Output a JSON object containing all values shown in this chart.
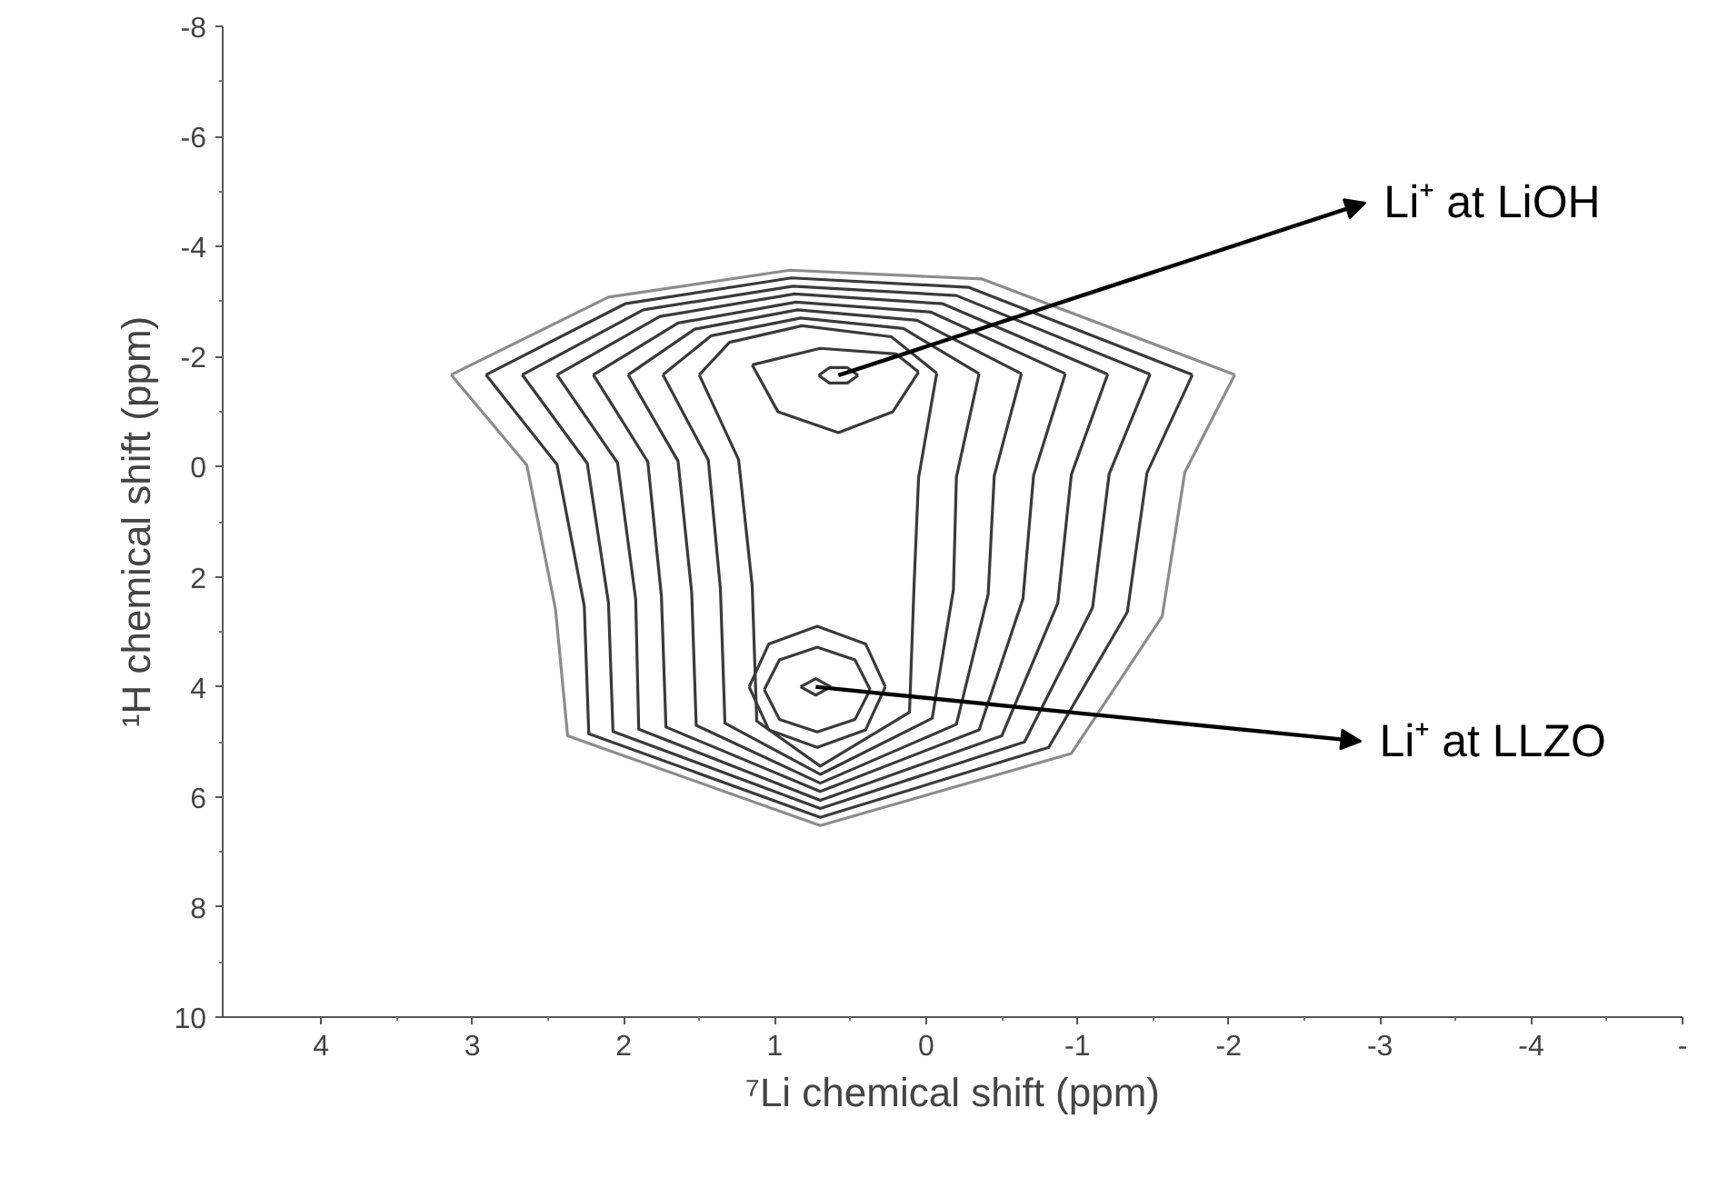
{
  "chart_data": {
    "type": "line",
    "xlabel": "⁷Li chemical shift (ppm)",
    "ylabel": "¹H chemical shift (ppm)",
    "xlim": [
      4.65,
      -5
    ],
    "ylim": [
      10,
      -8
    ],
    "xticks": [
      4,
      3,
      2,
      1,
      0,
      -1,
      -2,
      -3,
      -4,
      {
        "value": -5,
        "label": "-"
      }
    ],
    "yticks": [
      -8,
      -6,
      -4,
      -2,
      0,
      2,
      4,
      6,
      8,
      10
    ],
    "grid": false,
    "marker": "none",
    "line_style": "solid",
    "series": [
      {
        "color": "#8c8c8c",
        "x": [
          -2.04,
          -0.37,
          0.9,
          2.1,
          3.14
        ],
        "values": [
          -1.67,
          -3.41,
          -3.57,
          -3.08,
          -1.67
        ]
      },
      {
        "color": "#8c8c8c",
        "x": [
          -2.04,
          -1.71,
          -1.56,
          -0.96,
          0.7,
          2.37,
          2.45,
          2.64,
          3.14
        ],
        "values": [
          -1.67,
          0.1,
          2.72,
          5.21,
          6.52,
          4.89,
          2.59,
          -0.03,
          -1.67
        ]
      },
      {
        "color": "#3a3a3a",
        "x": [
          -1.76,
          -0.28,
          0.89,
          1.99,
          2.91
        ],
        "values": [
          -1.67,
          -3.26,
          -3.43,
          -2.96,
          -1.67
        ]
      },
      {
        "color": "#3a3a3a",
        "x": [
          -1.76,
          -1.46,
          -1.33,
          -0.81,
          0.7,
          2.23,
          2.26,
          2.44,
          2.91
        ],
        "values": [
          -1.67,
          0.11,
          2.64,
          5.1,
          6.37,
          4.85,
          2.53,
          -0.04,
          -1.67
        ]
      },
      {
        "color": "#3a3a3a",
        "x": [
          -1.48,
          -0.2,
          0.88,
          1.87,
          2.67
        ],
        "values": [
          -1.68,
          -3.11,
          -3.28,
          -2.85,
          -1.67
        ]
      },
      {
        "color": "#3a3a3a",
        "x": [
          -1.48,
          -1.21,
          -1.1,
          -0.65,
          0.7,
          2.07,
          2.1,
          2.24,
          2.67
        ],
        "values": [
          -1.68,
          0.13,
          2.56,
          5.0,
          6.21,
          4.81,
          2.47,
          -0.06,
          -1.67
        ]
      },
      {
        "color": "#3a3a3a",
        "x": [
          -1.2,
          -0.11,
          0.87,
          1.76,
          2.44
        ],
        "values": [
          -1.68,
          -2.96,
          -3.14,
          -2.73,
          -1.67
        ]
      },
      {
        "color": "#3a3a3a",
        "x": [
          -1.2,
          -0.96,
          -0.87,
          -0.5,
          0.7,
          1.9,
          1.92,
          2.04,
          2.44
        ],
        "values": [
          -1.68,
          0.14,
          2.48,
          4.89,
          6.06,
          4.77,
          2.41,
          -0.07,
          -1.67
        ]
      },
      {
        "color": "#3a3a3a",
        "x": [
          -0.92,
          -0.03,
          0.86,
          1.64,
          2.2
        ],
        "values": [
          -1.69,
          -2.81,
          -2.99,
          -2.61,
          -1.67
        ]
      },
      {
        "color": "#3a3a3a",
        "x": [
          -0.92,
          -0.71,
          -0.64,
          -0.35,
          0.7,
          1.72,
          1.75,
          1.84,
          2.2
        ],
        "values": [
          -1.69,
          0.16,
          2.4,
          4.78,
          5.9,
          4.73,
          2.35,
          -0.09,
          -1.67
        ]
      },
      {
        "color": "#3a3a3a",
        "x": [
          -0.63,
          0.06,
          0.85,
          1.53,
          1.97
        ],
        "values": [
          -1.69,
          -2.66,
          -2.85,
          -2.5,
          -1.67
        ]
      },
      {
        "color": "#3a3a3a",
        "x": [
          -0.63,
          -0.45,
          -0.41,
          -0.2,
          0.7,
          1.52,
          1.55,
          1.64,
          1.97
        ],
        "values": [
          -1.69,
          0.17,
          2.32,
          4.68,
          5.75,
          4.7,
          2.28,
          -0.1,
          -1.67
        ]
      },
      {
        "color": "#3a3a3a",
        "x": [
          -0.35,
          0.15,
          0.83,
          1.42,
          1.74
        ],
        "values": [
          -1.69,
          -2.51,
          -2.7,
          -2.38,
          -1.67
        ]
      },
      {
        "color": "#3a3a3a",
        "x": [
          -0.35,
          -0.2,
          -0.18,
          -0.04,
          0.7,
          1.33,
          1.36,
          1.44,
          1.74
        ],
        "values": [
          -1.69,
          0.19,
          2.24,
          4.57,
          5.59,
          4.66,
          2.22,
          -0.12,
          -1.67
        ]
      },
      {
        "color": "#3a3a3a",
        "x": [
          -0.07,
          0.23,
          0.82,
          1.3,
          1.5
        ],
        "values": [
          -1.7,
          -2.36,
          -2.56,
          -2.26,
          -1.67
        ]
      },
      {
        "color": "#3a3a3a",
        "x": [
          -0.07,
          0.05,
          0.08,
          0.11,
          0.7,
          1.12,
          1.15,
          1.24,
          1.5
        ],
        "values": [
          -1.7,
          0.2,
          2.16,
          4.46,
          5.44,
          4.62,
          2.16,
          -0.13,
          -1.67
        ]
      },
      {
        "color": "#3a3a3a",
        "x": [
          0.05,
          0.2,
          0.7,
          1.15
        ],
        "values": [
          -1.72,
          -2.05,
          -2.15,
          -1.85
        ]
      },
      {
        "color": "#3a3a3a",
        "x": [
          0.05,
          0.22,
          0.58,
          0.98,
          1.15
        ],
        "values": [
          -1.72,
          -1.0,
          -0.62,
          -1.0,
          -1.85
        ]
      },
      {
        "color": "#3a3a3a",
        "x": [
          0.45,
          0.52,
          0.64,
          0.71
        ],
        "values": [
          -1.66,
          -1.8,
          -1.8,
          -1.66
        ]
      },
      {
        "color": "#3a3a3a",
        "x": [
          0.45,
          0.52,
          0.64,
          0.71
        ],
        "values": [
          -1.66,
          -1.52,
          -1.52,
          -1.66
        ]
      },
      {
        "color": "#3a3a3a",
        "x": [
          0.27,
          0.4,
          0.72,
          1.04,
          1.17
        ],
        "values": [
          4.0,
          3.22,
          2.9,
          3.22,
          4.0
        ]
      },
      {
        "color": "#3a3a3a",
        "x": [
          0.27,
          0.4,
          0.72,
          1.04,
          1.17
        ],
        "values": [
          4.0,
          4.78,
          5.1,
          4.78,
          4.0
        ]
      },
      {
        "color": "#3a3a3a",
        "x": [
          0.37,
          0.47,
          0.72,
          0.97,
          1.07
        ],
        "values": [
          4.05,
          3.51,
          3.28,
          3.51,
          4.05
        ]
      },
      {
        "color": "#3a3a3a",
        "x": [
          0.37,
          0.47,
          0.72,
          0.97,
          1.07
        ],
        "values": [
          4.05,
          4.59,
          4.82,
          4.59,
          4.05
        ]
      },
      {
        "color": "#3a3a3a",
        "x": [
          0.63,
          0.73,
          0.83
        ],
        "values": [
          4.0,
          3.85,
          4.0
        ]
      },
      {
        "color": "#3a3a3a",
        "x": [
          0.63,
          0.73,
          0.83
        ],
        "values": [
          4.0,
          4.15,
          4.0
        ]
      }
    ],
    "annotations": [
      {
        "text": "Li⁺ at LiOH",
        "x": 0.58,
        "y": -1.66
      },
      {
        "text": "Li⁺ at LLZO",
        "x": 0.73,
        "y": 4.0
      }
    ]
  }
}
